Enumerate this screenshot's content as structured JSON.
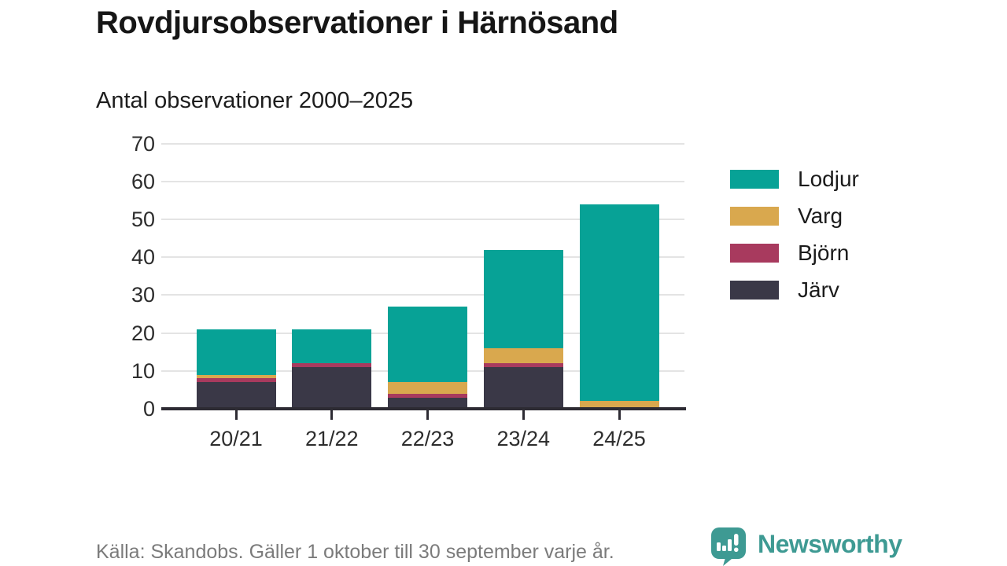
{
  "header": {
    "title": "Rovdjursobservationer i Härnösand",
    "subtitle": "Antal observationer 2000–2025"
  },
  "chart_data": {
    "type": "bar",
    "stacked": true,
    "title": "Rovdjursobservationer i Härnösand",
    "subtitle": "Antal observationer 2000–2025",
    "categories": [
      "20/21",
      "21/22",
      "22/23",
      "23/24",
      "24/25"
    ],
    "series": [
      {
        "name": "Järv",
        "color": "#3a3847",
        "values": [
          7,
          11,
          3,
          11,
          0
        ]
      },
      {
        "name": "Björn",
        "color": "#a83a5e",
        "values": [
          1,
          1,
          1,
          1,
          0
        ]
      },
      {
        "name": "Varg",
        "color": "#d9a84e",
        "values": [
          1,
          0,
          3,
          4,
          2
        ]
      },
      {
        "name": "Lodjur",
        "color": "#07a296",
        "values": [
          12,
          9,
          20,
          26,
          52
        ]
      }
    ],
    "totals": [
      21,
      21,
      27,
      42,
      54
    ],
    "ylim": [
      0,
      70
    ],
    "y_ticks": [
      0,
      10,
      20,
      30,
      40,
      50,
      60,
      70
    ],
    "grid": true,
    "legend_position": "right",
    "legend_order": [
      "Lodjur",
      "Varg",
      "Björn",
      "Järv"
    ]
  },
  "footer": {
    "source": "Källa: Skandobs. Gäller 1 oktober till 30 september varje år.",
    "brand": "Newsworthy"
  },
  "colors": {
    "accent_teal": "#07a296",
    "logo_teal": "#3e9a93",
    "grid": "#e4e4e4",
    "axis": "#2d2b33"
  }
}
